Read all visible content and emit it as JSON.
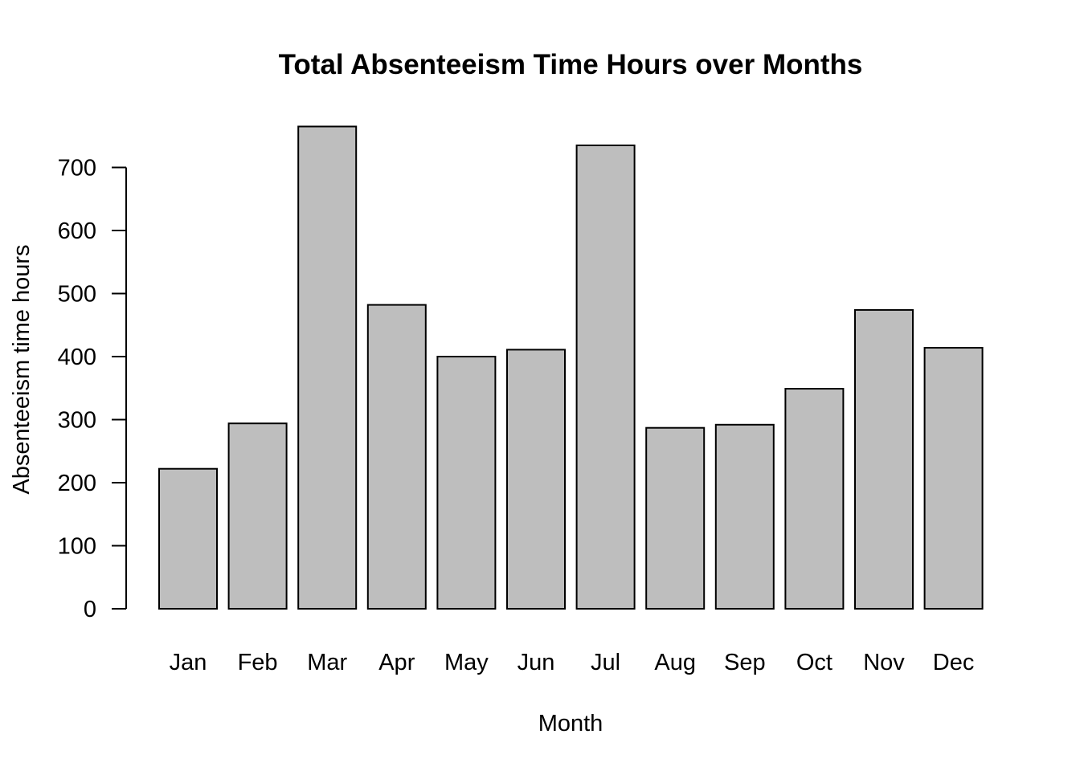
{
  "chart_data": {
    "type": "bar",
    "title": "Total Absenteeism Time Hours over Months",
    "xlabel": "Month",
    "ylabel": "Absenteeism time hours",
    "categories": [
      "Jan",
      "Feb",
      "Mar",
      "Apr",
      "May",
      "Jun",
      "Jul",
      "Aug",
      "Sep",
      "Oct",
      "Nov",
      "Dec"
    ],
    "values": [
      222,
      294,
      765,
      482,
      400,
      411,
      735,
      287,
      292,
      349,
      474,
      414
    ],
    "yticks": [
      0,
      100,
      200,
      300,
      400,
      500,
      600,
      700
    ],
    "ylim": [
      0,
      765
    ],
    "bar_color": "#bebebe",
    "border_color": "#000000",
    "grid": false,
    "legend": "none"
  }
}
